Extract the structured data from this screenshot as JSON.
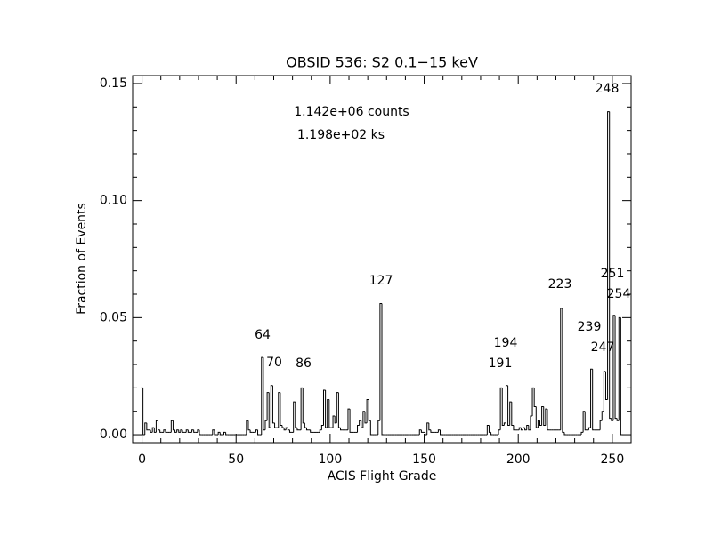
{
  "chart_data": {
    "type": "histogram-step",
    "title": "OBSID 536: S2 0.1−15 keV",
    "xlabel": "ACIS Flight Grade",
    "ylabel": "Fraction of Events",
    "annotations": [
      "1.142e+06 counts",
      "1.198e+02 ks"
    ],
    "peak_labels": [
      "64",
      "70",
      "86",
      "127",
      "191",
      "194",
      "223",
      "239",
      "247",
      "248",
      "251",
      "254"
    ],
    "color": "#000000",
    "xlim": [
      -5,
      260
    ],
    "ylim": [
      -0.0034,
      0.1534
    ],
    "xticks": [
      0,
      50,
      100,
      150,
      200,
      250
    ],
    "yticks": [
      {
        "value": 0,
        "label": "0.00"
      },
      {
        "value": 0.05,
        "label": "0.05"
      },
      {
        "value": 0.1,
        "label": "0.10"
      },
      {
        "value": 0.15,
        "label": "0.15"
      }
    ],
    "x": [
      0,
      1,
      2,
      3,
      4,
      5,
      6,
      7,
      8,
      9,
      10,
      11,
      12,
      13,
      14,
      15,
      16,
      17,
      18,
      19,
      20,
      21,
      22,
      23,
      24,
      25,
      26,
      27,
      28,
      29,
      30,
      31,
      32,
      33,
      34,
      35,
      36,
      37,
      38,
      39,
      40,
      41,
      42,
      43,
      44,
      45,
      46,
      47,
      48,
      49,
      50,
      51,
      52,
      53,
      54,
      55,
      56,
      57,
      58,
      59,
      60,
      61,
      62,
      63,
      64,
      65,
      66,
      67,
      68,
      69,
      70,
      71,
      72,
      73,
      74,
      75,
      76,
      77,
      78,
      79,
      80,
      81,
      82,
      83,
      84,
      85,
      86,
      87,
      88,
      89,
      90,
      91,
      92,
      93,
      94,
      95,
      96,
      97,
      98,
      99,
      100,
      101,
      102,
      103,
      104,
      105,
      106,
      107,
      108,
      109,
      110,
      111,
      112,
      113,
      114,
      115,
      116,
      117,
      118,
      119,
      120,
      121,
      122,
      123,
      124,
      125,
      126,
      127,
      128,
      129,
      130,
      131,
      132,
      133,
      134,
      135,
      136,
      137,
      138,
      139,
      140,
      141,
      142,
      143,
      144,
      145,
      146,
      147,
      148,
      149,
      150,
      151,
      152,
      153,
      154,
      155,
      156,
      157,
      158,
      159,
      160,
      161,
      162,
      163,
      164,
      165,
      166,
      167,
      168,
      169,
      170,
      171,
      172,
      173,
      174,
      175,
      176,
      177,
      178,
      179,
      180,
      181,
      182,
      183,
      184,
      185,
      186,
      187,
      188,
      189,
      190,
      191,
      192,
      193,
      194,
      195,
      196,
      197,
      198,
      199,
      200,
      201,
      202,
      203,
      204,
      205,
      206,
      207,
      208,
      209,
      210,
      211,
      212,
      213,
      214,
      215,
      216,
      217,
      218,
      219,
      220,
      221,
      222,
      223,
      224,
      225,
      226,
      227,
      228,
      229,
      230,
      231,
      232,
      233,
      234,
      235,
      236,
      237,
      238,
      239,
      240,
      241,
      242,
      243,
      244,
      245,
      246,
      247,
      248,
      249,
      250,
      251,
      252,
      253,
      254,
      255
    ],
    "values": [
      0.02,
      0,
      0.005,
      0.002,
      0.002,
      0.001,
      0.003,
      0.001,
      0.006,
      0.002,
      0.001,
      0.001,
      0.002,
      0.001,
      0.001,
      0.001,
      0.006,
      0.002,
      0.001,
      0.002,
      0.001,
      0.002,
      0.001,
      0.001,
      0.002,
      0.001,
      0.001,
      0.002,
      0.001,
      0.001,
      0.002,
      0,
      0,
      0,
      0,
      0,
      0,
      0,
      0.002,
      0,
      0,
      0.001,
      0,
      0,
      0.001,
      0,
      0,
      0,
      0,
      0,
      0,
      0,
      0,
      0,
      0,
      0,
      0.006,
      0.002,
      0.001,
      0.001,
      0.001,
      0.002,
      0,
      0,
      0.033,
      0.002,
      0.006,
      0.018,
      0.003,
      0.021,
      0.005,
      0.003,
      0.003,
      0.018,
      0.004,
      0.003,
      0.002,
      0.003,
      0.002,
      0.001,
      0.001,
      0.014,
      0.003,
      0.002,
      0.002,
      0.02,
      0.005,
      0.003,
      0.002,
      0.002,
      0.001,
      0.001,
      0.001,
      0.001,
      0.001,
      0.002,
      0.004,
      0.019,
      0.003,
      0.015,
      0.003,
      0.003,
      0.008,
      0.005,
      0.018,
      0.003,
      0.002,
      0.002,
      0.002,
      0.002,
      0.011,
      0.001,
      0.001,
      0.001,
      0.001,
      0.004,
      0.006,
      0.003,
      0.01,
      0.005,
      0.015,
      0.006,
      0,
      0,
      0,
      0,
      0.006,
      0.056,
      0,
      0,
      0,
      0,
      0,
      0,
      0,
      0,
      0,
      0,
      0,
      0,
      0,
      0,
      0,
      0,
      0,
      0,
      0,
      0,
      0.002,
      0.001,
      0.001,
      0,
      0.005,
      0.002,
      0.001,
      0.001,
      0.001,
      0.001,
      0.002,
      0,
      0,
      0,
      0,
      0,
      0,
      0,
      0,
      0,
      0,
      0,
      0,
      0,
      0,
      0,
      0,
      0,
      0,
      0,
      0,
      0,
      0,
      0,
      0,
      0,
      0.004,
      0.001,
      0,
      0,
      0,
      0,
      0.002,
      0.02,
      0.004,
      0.005,
      0.021,
      0.004,
      0.014,
      0.004,
      0.002,
      0.002,
      0.002,
      0.003,
      0.002,
      0.003,
      0.002,
      0.004,
      0.002,
      0.008,
      0.02,
      0.012,
      0.003,
      0.006,
      0.004,
      0.012,
      0.004,
      0.011,
      0.002,
      0.002,
      0.002,
      0.002,
      0.002,
      0.002,
      0.002,
      0.054,
      0.001,
      0,
      0,
      0,
      0,
      0,
      0,
      0,
      0,
      0,
      0.001,
      0.01,
      0.002,
      0.002,
      0.003,
      0.028,
      0.002,
      0.002,
      0.002,
      0.002,
      0.006,
      0.01,
      0.027,
      0.015,
      0.138,
      0.007,
      0.006,
      0.051,
      0.007,
      0.006,
      0.05,
      0
    ]
  }
}
